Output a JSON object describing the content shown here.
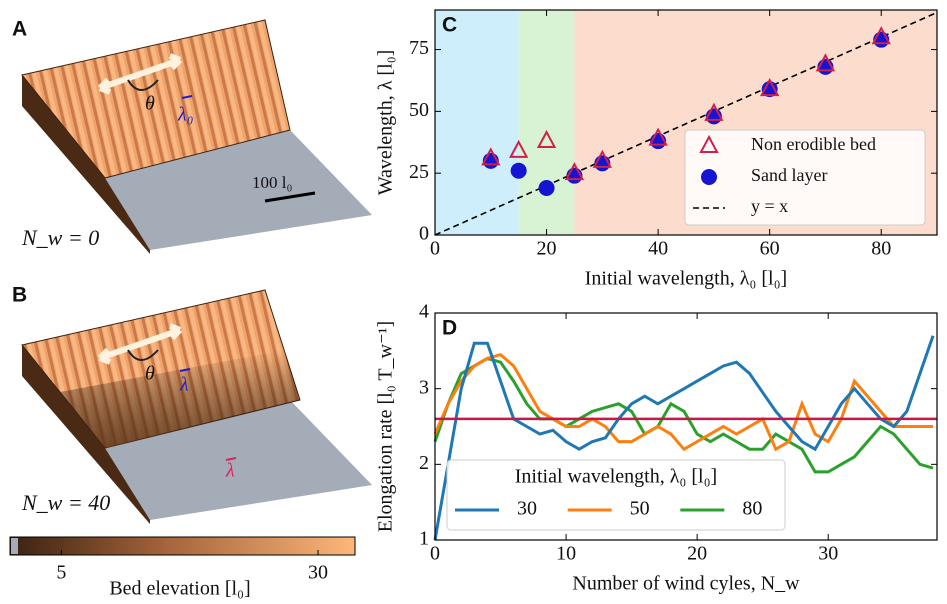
{
  "panels": [
    {
      "letter": "A",
      "angle": "θ",
      "wavelength": "λ₀",
      "scale_bar": "100 l₀",
      "wind_cycles": "N_w = 0"
    },
    {
      "letter": "B",
      "angle": "θ",
      "wavelength": "λ",
      "wavelength_tip": "λ",
      "wind_cycles": "N_w = 40"
    }
  ],
  "colorbar": {
    "label": "Bed elevation [l₀]",
    "lim": [
      0,
      33.6
    ],
    "ticks": [
      5,
      30
    ]
  },
  "chart_data": [
    {
      "type": "scatter",
      "letter": "C",
      "xlabel": "Initial wavelength, λ₀ [l₀]",
      "ylabel": "Wavelength, λ [l₀]",
      "xlim": [
        0,
        90
      ],
      "ylim": [
        0,
        91
      ],
      "xticks": [
        0,
        20,
        40,
        60,
        80
      ],
      "yticks": [
        0,
        25,
        50,
        75
      ],
      "regions": [
        {
          "range": [
            0,
            15
          ],
          "color": "#cdeefa"
        },
        {
          "range": [
            15,
            25
          ],
          "color": "#d7f3d3"
        },
        {
          "range": [
            25,
            90
          ],
          "color": "#fcdccd"
        }
      ],
      "series": [
        {
          "name": "Non erodible bed",
          "color": "#d0204a",
          "marker": "triangle",
          "x": [
            10,
            15,
            20,
            25,
            30,
            40,
            50,
            60,
            70,
            80
          ],
          "values": [
            31,
            34,
            38,
            25,
            30,
            39,
            49,
            59,
            69,
            80
          ]
        },
        {
          "name": "Sand layer",
          "color": "#1414d2",
          "marker": "circle",
          "x": [
            10,
            15,
            20,
            25,
            30,
            40,
            50,
            60,
            70,
            80
          ],
          "values": [
            30,
            26,
            19,
            24,
            29,
            38,
            48,
            59,
            68,
            79
          ]
        },
        {
          "name": "y = x",
          "color": "#000000",
          "style": "dashed",
          "x": [
            0,
            90
          ],
          "values": [
            0,
            90
          ]
        }
      ],
      "legend": {
        "position": "lower right"
      }
    },
    {
      "type": "line",
      "letter": "D",
      "xlabel": "Number of wind cyles, N_w",
      "ylabel": "Elongation rate [l₀ T_w⁻¹]",
      "xlim": [
        0,
        38.3
      ],
      "ylim": [
        1,
        4
      ],
      "xticks": [
        0,
        10,
        20,
        30
      ],
      "yticks": [
        1,
        2,
        3,
        4
      ],
      "x": [
        0,
        1,
        2,
        3,
        4,
        5,
        6,
        7,
        8,
        9,
        10,
        11,
        12,
        13,
        14,
        15,
        16,
        17,
        18,
        19,
        20,
        21,
        22,
        23,
        24,
        25,
        26,
        27,
        28,
        29,
        30,
        31,
        32,
        33,
        34,
        35,
        36,
        37,
        38
      ],
      "series": [
        {
          "name": "30",
          "color": "#1f77b4",
          "values": [
            1.0,
            2.0,
            3.0,
            3.6,
            3.6,
            3.1,
            2.6,
            2.5,
            2.4,
            2.45,
            2.3,
            2.2,
            2.3,
            2.35,
            2.6,
            2.8,
            2.9,
            2.8,
            2.9,
            3.0,
            3.1,
            3.2,
            3.3,
            3.35,
            3.2,
            2.95,
            2.7,
            2.5,
            2.3,
            2.2,
            2.5,
            2.8,
            3.0,
            2.8,
            2.6,
            2.5,
            2.7,
            3.2,
            3.7
          ]
        },
        {
          "name": "50",
          "color": "#ff7f0e",
          "values": [
            2.4,
            2.8,
            3.1,
            3.3,
            3.4,
            3.45,
            3.3,
            3.0,
            2.7,
            2.6,
            2.5,
            2.5,
            2.6,
            2.5,
            2.3,
            2.3,
            2.4,
            2.5,
            2.4,
            2.2,
            2.3,
            2.4,
            2.5,
            2.4,
            2.5,
            2.6,
            2.2,
            2.3,
            2.8,
            2.4,
            2.3,
            2.6,
            3.1,
            2.9,
            2.7,
            2.5,
            2.5,
            2.5,
            2.5
          ]
        },
        {
          "name": "80",
          "color": "#2ca02c",
          "values": [
            2.3,
            2.8,
            3.2,
            3.3,
            3.4,
            3.35,
            3.1,
            2.8,
            2.6,
            2.6,
            2.5,
            2.6,
            2.7,
            2.75,
            2.8,
            2.7,
            2.4,
            2.5,
            2.8,
            2.7,
            2.4,
            2.3,
            2.4,
            2.3,
            2.2,
            2.2,
            2.4,
            2.3,
            2.2,
            1.9,
            1.9,
            2.0,
            2.1,
            2.3,
            2.5,
            2.4,
            2.2,
            2.0,
            1.95
          ]
        }
      ],
      "hline": {
        "value": 2.6,
        "color": "#c8184a"
      },
      "legend": {
        "position": "lower left",
        "title": "Initial wavelength, λ₀ [l₀]",
        "columns": 3
      }
    }
  ]
}
